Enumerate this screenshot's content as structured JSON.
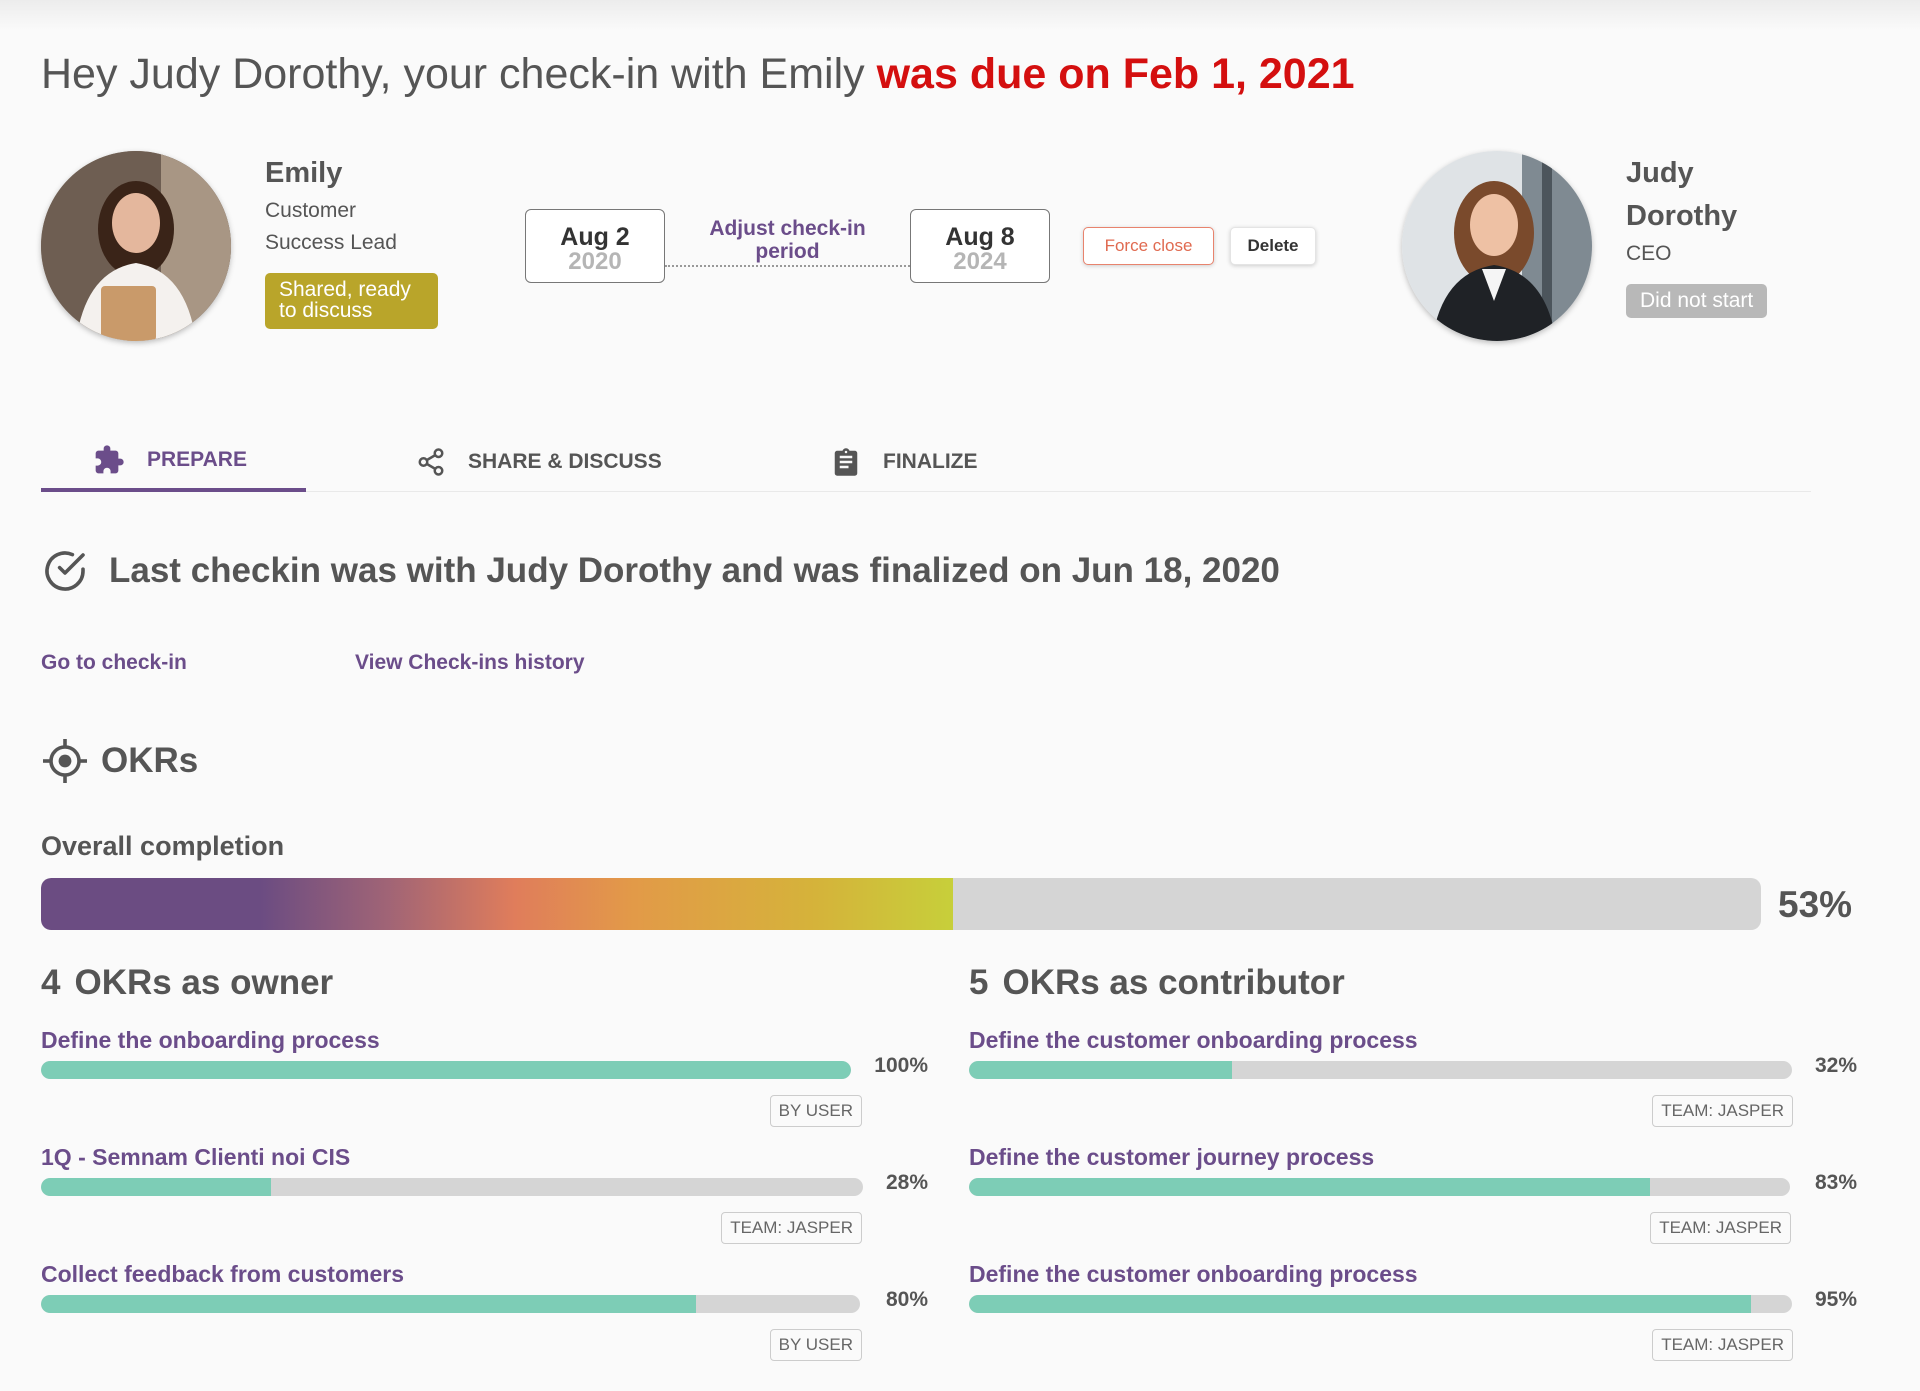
{
  "header": {
    "greeting": "Hey Judy Dorothy, your check-in with Emily",
    "due_text": "was due on Feb 1, 2021"
  },
  "employee": {
    "name": "Emily",
    "role_line1": "Customer",
    "role_line2": "Success Lead",
    "status_line1": "Shared, ready",
    "status_line2": "to discuss"
  },
  "period": {
    "start_md": "Aug 2",
    "start_year": "2020",
    "adjust_line1": "Adjust check-in",
    "adjust_line2": "period",
    "end_md": "Aug 8",
    "end_year": "2024"
  },
  "actions": {
    "force_close": "Force close",
    "delete": "Delete"
  },
  "manager": {
    "name_line1": "Judy",
    "name_line2": "Dorothy",
    "role": "CEO",
    "status": "Did not start"
  },
  "tabs": [
    {
      "label": "PREPARE",
      "icon": "puzzle-icon",
      "active": true
    },
    {
      "label": "SHARE & DISCUSS",
      "icon": "share-icon",
      "active": false
    },
    {
      "label": "FINALIZE",
      "icon": "clipboard-icon",
      "active": false
    }
  ],
  "last_checkin": {
    "text": "Last checkin was with Judy Dorothy and was finalized on Jun 18, 2020",
    "go_link": "Go to check-in",
    "history_link": "View Check-ins history"
  },
  "okrs": {
    "title": "OKRs",
    "overall_label": "Overall completion",
    "overall_pct_text": "53%",
    "overall_value": 0.53,
    "owner": {
      "count": "4",
      "title": "OKRs as owner",
      "items": [
        {
          "title": "Define the onboarding process",
          "progress": 1.0,
          "pct": "100%",
          "tag": "BY USER"
        },
        {
          "title": "1Q - Semnam Clienti noi CIS",
          "progress": 0.28,
          "pct": "28%",
          "tag": "TEAM: JASPER"
        },
        {
          "title": "Collect feedback from customers",
          "progress": 0.8,
          "pct": "80%",
          "tag": "BY USER"
        }
      ]
    },
    "contributor": {
      "count": "5",
      "title": "OKRs as contributor",
      "items": [
        {
          "title": "Define the customer onboarding process",
          "progress": 0.32,
          "pct": "32%",
          "tag": "TEAM: JASPER"
        },
        {
          "title": "Define the customer journey process",
          "progress": 0.83,
          "pct": "83%",
          "tag": "TEAM: JASPER"
        },
        {
          "title": "Define the customer onboarding process",
          "progress": 0.95,
          "pct": "95%",
          "tag": "TEAM: JASPER"
        }
      ]
    }
  },
  "colors": {
    "accent": "#6b4d8a",
    "due": "#d40f0f",
    "shared_badge": "#b9a52a",
    "not_started_badge": "#b8b8b8",
    "okr_fill": "#7dcdb6",
    "track": "#d5d5d5"
  }
}
